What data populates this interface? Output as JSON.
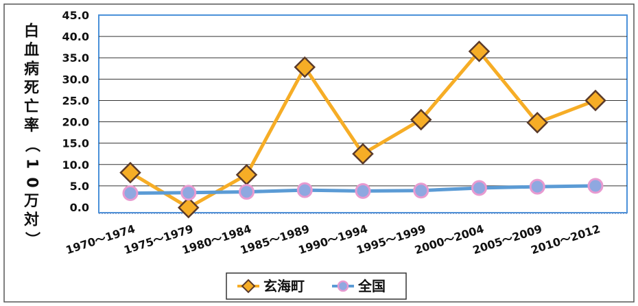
{
  "chart_data": {
    "type": "line",
    "categories": [
      "1970～1974",
      "1975～1979",
      "1980～1984",
      "1985～1989",
      "1990～1994",
      "1995～1999",
      "2000～2004",
      "2005～2009",
      "2010～2012"
    ],
    "series": [
      {
        "name": "玄海町",
        "values": [
          8.1,
          -0.1,
          7.6,
          32.8,
          12.5,
          20.5,
          36.5,
          19.8,
          25.0
        ],
        "color": "#f6ad26",
        "marker": "diamond",
        "marker_color": "#f6ad26"
      },
      {
        "name": "全国",
        "values": [
          3.3,
          3.4,
          3.6,
          4.0,
          3.8,
          3.9,
          4.5,
          4.8,
          5.0
        ],
        "color": "#5b9bd5",
        "marker": "circle",
        "marker_color": "#8fa8e0"
      }
    ],
    "ylim": [
      0,
      45
    ],
    "yticks": [
      "0.0",
      "5.0",
      "10.0",
      "15.0",
      "20.0",
      "25.0",
      "30.0",
      "35.0",
      "40.0",
      "45.0"
    ],
    "ylabel": "白血病死亡率（10万対）",
    "grid": true,
    "legend_position": "bottom"
  }
}
